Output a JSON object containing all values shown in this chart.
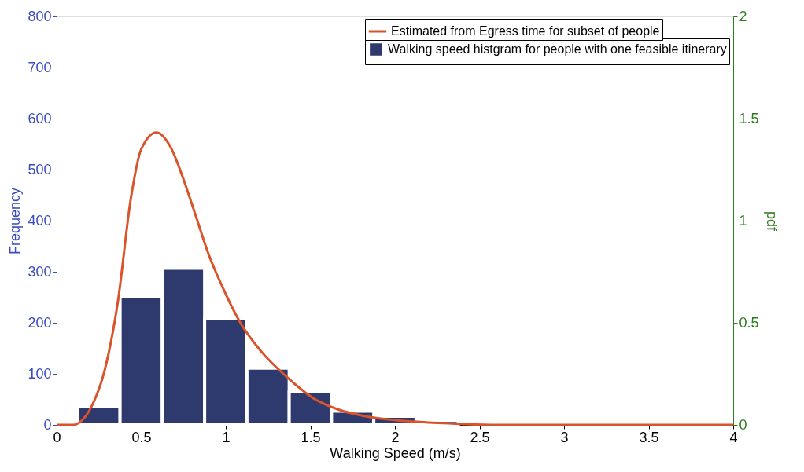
{
  "chart_data": {
    "type": "histogram",
    "xlabel": "Walking Speed (m/s)",
    "ylabel": "Frequency",
    "y2label": "pdf",
    "xlim": [
      0,
      4
    ],
    "xticks": [
      0,
      0.5,
      1,
      1.5,
      2,
      2.5,
      3,
      3.5,
      4
    ],
    "ylim": [
      0,
      800
    ],
    "yticks": [
      0,
      100,
      200,
      300,
      400,
      500,
      600,
      700,
      800
    ],
    "y2lim": [
      0,
      2
    ],
    "y2ticks": [
      0,
      0.5,
      1,
      1.5,
      2
    ],
    "legend": "top right",
    "grid": false,
    "series": [
      {
        "type": "line",
        "axis": "y2",
        "name": "Estimated from Egress time for subset of people",
        "color": "#d9532b",
        "x": [
          0,
          0.1,
          0.131,
          0.208,
          0.285,
          0.362,
          0.439,
          0.5,
          0.59,
          0.67,
          0.747,
          0.824,
          0.901,
          0.978,
          1.086,
          1.209,
          1.363,
          1.517,
          1.67,
          1.826,
          2.13,
          2.38,
          2.6,
          3,
          3.5,
          4
        ],
        "values": [
          0,
          0,
          0.01,
          0.093,
          0.271,
          0.603,
          1.11,
          1.35,
          1.432,
          1.366,
          1.21,
          1.02,
          0.83,
          0.68,
          0.5,
          0.36,
          0.233,
          0.131,
          0.074,
          0.042,
          0.015,
          0.005,
          0,
          0,
          0,
          0
        ]
      },
      {
        "type": "histogram",
        "name": "Walking speed histgram for people with one feasible itinerary",
        "color": "#2e3a6e",
        "bins": [
          0.125,
          0.375,
          0.625,
          0.875,
          1.125,
          1.375,
          1.625,
          1.875,
          2.125,
          2.375,
          2.625
        ],
        "values": [
          37,
          252,
          307,
          208,
          111,
          66,
          27,
          17,
          9,
          null
        ]
      }
    ]
  }
}
